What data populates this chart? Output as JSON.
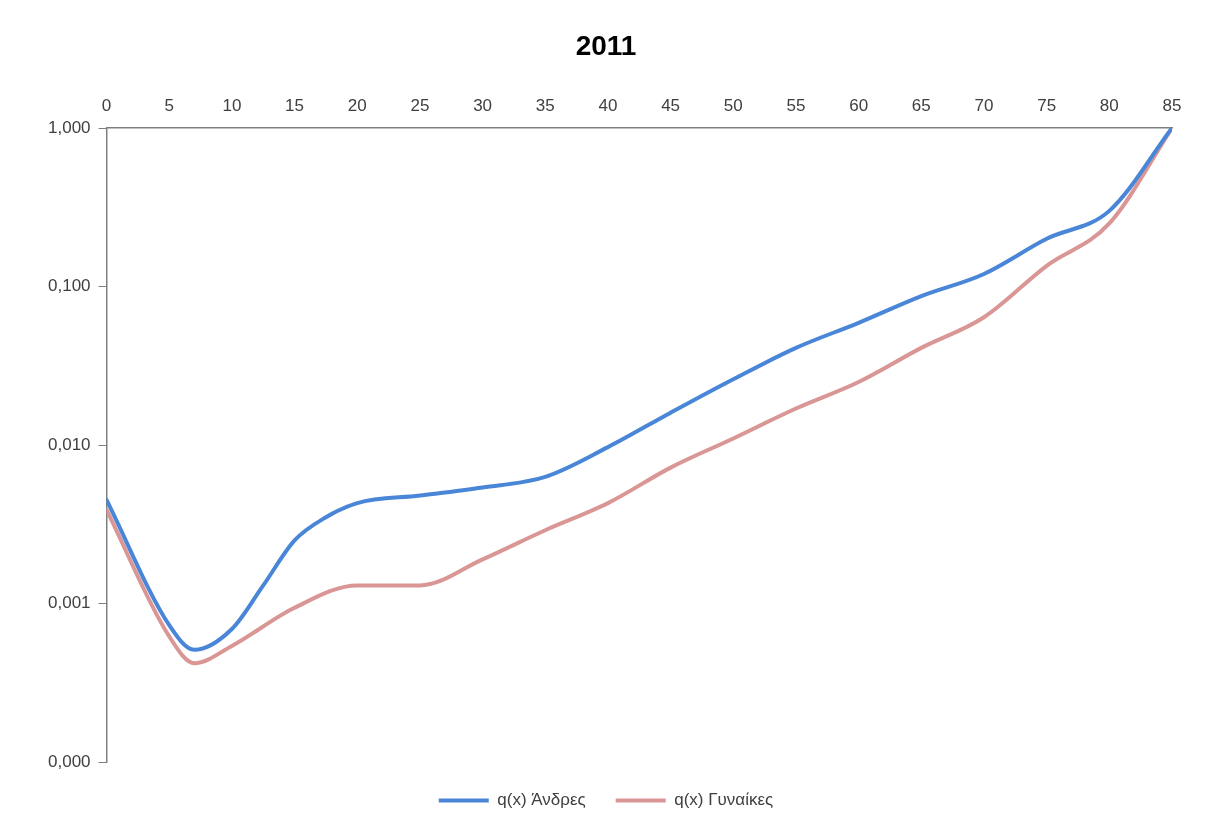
{
  "chart_data": {
    "type": "line",
    "title": "2011",
    "xlim": [
      0,
      85
    ],
    "xticks": [
      0,
      5,
      10,
      15,
      20,
      25,
      30,
      35,
      40,
      45,
      50,
      55,
      60,
      65,
      70,
      75,
      80,
      85
    ],
    "ylim": [
      0.0001,
      1
    ],
    "log": "y",
    "yticks": [
      {
        "value": 0.0001,
        "label": "0,000"
      },
      {
        "value": 0.001,
        "label": "0,001"
      },
      {
        "value": 0.01,
        "label": "0,010"
      },
      {
        "value": 0.1,
        "label": "0,100"
      },
      {
        "value": 1,
        "label": "1,000"
      }
    ],
    "grid": false,
    "legend": "bottom",
    "marker": "none",
    "line_style": "solid",
    "series": [
      {
        "name": "q(x) Άνδρες",
        "color": "#4a86d8",
        "x": [
          0,
          5,
          7,
          10,
          12.5,
          15,
          17.5,
          20,
          25,
          30,
          35,
          40,
          45,
          50,
          55,
          60,
          65,
          70,
          75,
          80,
          85
        ],
        "values": [
          0.0045,
          0.00073,
          0.00051,
          0.00069,
          0.0013,
          0.0025,
          0.0035,
          0.0043,
          0.0048,
          0.0054,
          0.0063,
          0.0097,
          0.016,
          0.026,
          0.041,
          0.059,
          0.087,
          0.12,
          0.2,
          0.3,
          1
        ]
      },
      {
        "name": "q(x) Γυναίκες",
        "color": "#d99694",
        "x": [
          0,
          5,
          7,
          10,
          15,
          20,
          25,
          30,
          35,
          40,
          45,
          50,
          55,
          60,
          65,
          70,
          75,
          80,
          85
        ],
        "values": [
          0.0039,
          0.00062,
          0.00042,
          0.00054,
          0.00094,
          0.0013,
          0.0013,
          0.0019,
          0.0029,
          0.0043,
          0.0072,
          0.011,
          0.017,
          0.025,
          0.041,
          0.064,
          0.135,
          0.25,
          1
        ]
      }
    ]
  }
}
